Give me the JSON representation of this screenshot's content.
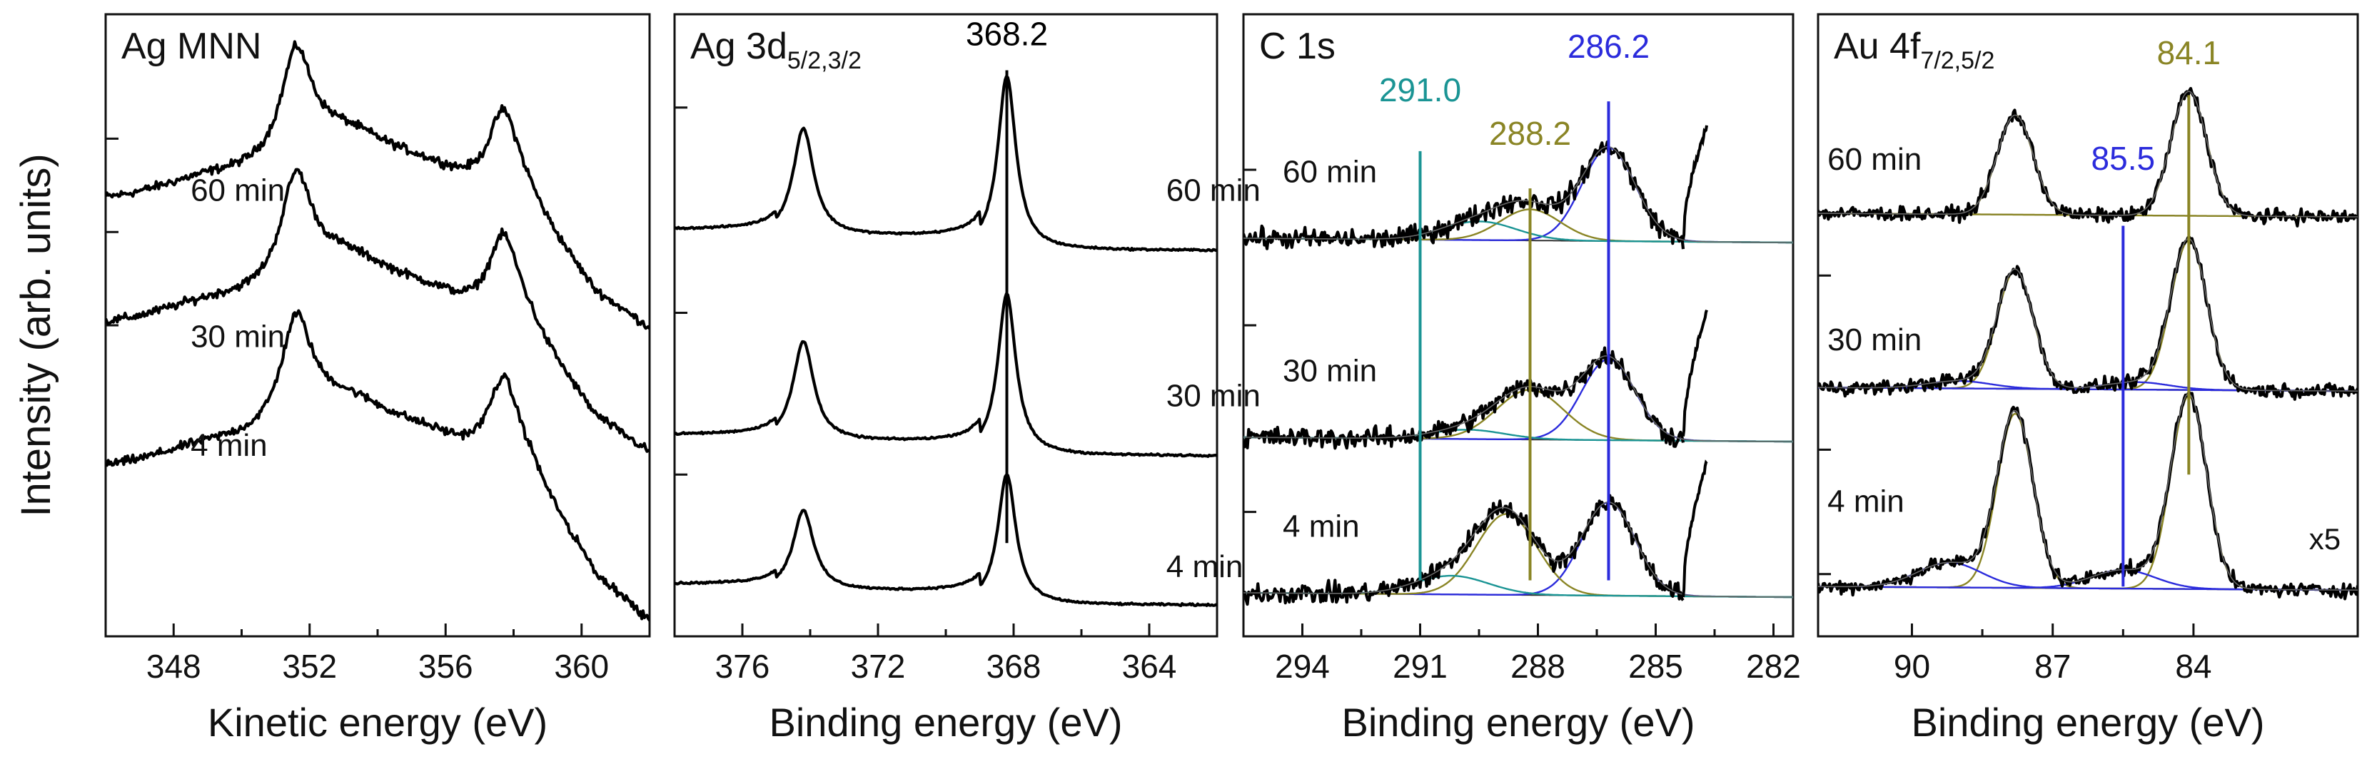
{
  "figure": {
    "ylabel": "Intensity (arb. units)"
  },
  "chart_data": [
    {
      "type": "line",
      "title": "Ag MNN",
      "title_sub": "",
      "xlabel": "Kinetic energy (eV)",
      "xlim": [
        346,
        362
      ],
      "xticks": [
        348,
        352,
        356,
        360
      ],
      "ylabel": "Intensity (arb. units)",
      "ylim": [
        0,
        100
      ],
      "yticks": [
        50,
        65,
        80
      ],
      "x_reversed": false,
      "series": [
        {
          "name": "60 min",
          "label": "60 min",
          "baseline": 62,
          "label_x": 348.5,
          "label_y": 70,
          "spectrum": {
            "kind": "auger",
            "noise": 0.7,
            "end": 10
          }
        },
        {
          "name": "30 min",
          "label": "30 min",
          "baseline": 42,
          "label_x": 348.5,
          "label_y": 46.5,
          "spectrum": {
            "kind": "auger",
            "noise": 0.7,
            "end": 10
          }
        },
        {
          "name": "4 min",
          "label": "4 min",
          "baseline": 19,
          "label_x": 348.5,
          "label_y": 29,
          "spectrum": {
            "kind": "auger",
            "noise": 0.7,
            "end": 0
          }
        }
      ]
    },
    {
      "type": "line",
      "title": "Ag 3d",
      "title_sub": "5/2,3/2",
      "xlabel": "Binding energy (eV)",
      "xlim": [
        378,
        362
      ],
      "xticks": [
        376,
        372,
        368,
        364
      ],
      "ylabel": "Intensity (arb. units)",
      "ylim": [
        0,
        100
      ],
      "yticks": [
        26,
        52,
        85
      ],
      "x_reversed": true,
      "series": [
        {
          "name": "60 min",
          "label": "60 min",
          "baseline": 62,
          "label_x": 363.5,
          "label_y": 70,
          "spectrum": {
            "kind": "ag3d",
            "noise": 0.15,
            "amp": 28
          }
        },
        {
          "name": "30 min",
          "label": "30 min",
          "baseline": 29,
          "label_x": 363.5,
          "label_y": 37,
          "spectrum": {
            "kind": "ag3d",
            "noise": 0.15,
            "amp": 26
          }
        },
        {
          "name": "4 min",
          "label": "4 min",
          "baseline": 5,
          "label_x": 363.5,
          "label_y": 9.5,
          "spectrum": {
            "kind": "ag3d",
            "noise": 0.15,
            "amp": 21
          }
        }
      ],
      "markers": [
        {
          "x": 368.2,
          "label": "368.2",
          "color": "#000000",
          "y_from": 15,
          "y_to": 91,
          "label_y": 95
        }
      ]
    },
    {
      "type": "line",
      "title": "C 1s",
      "title_sub": "",
      "xlabel": "Binding energy (eV)",
      "xlim": [
        295.5,
        281.5
      ],
      "xticks": [
        294,
        291,
        288,
        285,
        282
      ],
      "ylabel": "Intensity (arb. units)",
      "ylim": [
        0,
        100
      ],
      "yticks": [
        20,
        50,
        75
      ],
      "x_reversed": true,
      "series": [
        {
          "name": "60 min",
          "label": "60 min",
          "baseline": 64,
          "label_x": 294.5,
          "label_y": 73,
          "components": [
            {
              "center": 286.2,
              "amp": 15,
              "fwhm": 1.6,
              "color": "#2b2bdc"
            },
            {
              "center": 288.2,
              "amp": 5,
              "fwhm": 1.8,
              "color": "#8a8525"
            },
            {
              "center": 289.5,
              "amp": 3,
              "fwhm": 2.2,
              "color": "#1a9494"
            }
          ],
          "edge": {
            "start": 284.3,
            "top": 82
          }
        },
        {
          "name": "30 min",
          "label": "30 min",
          "baseline": 32,
          "label_x": 294.5,
          "label_y": 41,
          "components": [
            {
              "center": 286.2,
              "amp": 13,
              "fwhm": 1.6,
              "color": "#2b2bdc"
            },
            {
              "center": 288.2,
              "amp": 8,
              "fwhm": 2.0,
              "color": "#8a8525"
            },
            {
              "center": 289.8,
              "amp": 1.5,
              "fwhm": 2.2,
              "color": "#1a9494"
            }
          ],
          "edge": {
            "start": 284.3,
            "top": 52
          }
        },
        {
          "name": "4 min",
          "label": "4 min",
          "baseline": 7,
          "label_x": 294.5,
          "label_y": 16,
          "components": [
            {
              "center": 286.2,
              "amp": 15,
              "fwhm": 1.6,
              "color": "#2b2bdc"
            },
            {
              "center": 288.8,
              "amp": 13,
              "fwhm": 1.8,
              "color": "#8a8525"
            },
            {
              "center": 290.2,
              "amp": 3,
              "fwhm": 2.2,
              "color": "#1a9494"
            }
          ],
          "edge": {
            "start": 284.3,
            "top": 28
          }
        }
      ],
      "markers": [
        {
          "x": 291.0,
          "label": "291.0",
          "color": "#1a9494",
          "y_from": 9,
          "y_to": 78,
          "label_y": 86
        },
        {
          "x": 288.2,
          "label": "288.2",
          "color": "#8a8525",
          "y_from": 9,
          "y_to": 72,
          "label_y": 79
        },
        {
          "x": 286.2,
          "label": "286.2",
          "color": "#2b2bdc",
          "y_from": 9,
          "y_to": 86,
          "label_y": 93
        }
      ]
    },
    {
      "type": "line",
      "title": "Au 4f",
      "title_sub": "7/2,5/2",
      "xlabel": "Binding energy (eV)",
      "xlim": [
        92,
        80.5
      ],
      "xticks": [
        90,
        87,
        84
      ],
      "ylabel": "Intensity (arb. units)",
      "ylim": [
        0,
        100
      ],
      "yticks": [
        10,
        30,
        58
      ],
      "x_reversed": true,
      "series": [
        {
          "name": "60 min",
          "label": "60 min",
          "baseline": 68,
          "label_x": 91.8,
          "label_y": 75,
          "components": [
            {
              "center": 84.1,
              "amp": 20,
              "fwhm": 0.9,
              "color": "#8a8525"
            },
            {
              "center": 87.8,
              "amp": 16,
              "fwhm": 0.9,
              "color": "#8a8525"
            }
          ]
        },
        {
          "name": "30 min",
          "label": "30 min",
          "baseline": 40,
          "label_x": 91.8,
          "label_y": 46,
          "components": [
            {
              "center": 84.1,
              "amp": 24,
              "fwhm": 0.9,
              "color": "#8a8525"
            },
            {
              "center": 87.8,
              "amp": 19,
              "fwhm": 0.9,
              "color": "#8a8525"
            },
            {
              "center": 85.2,
              "amp": 1.2,
              "fwhm": 1.6,
              "color": "#2b2bdc"
            },
            {
              "center": 89.0,
              "amp": 1.2,
              "fwhm": 1.6,
              "color": "#2b2bdc"
            }
          ]
        },
        {
          "name": "4 min",
          "label": "4 min",
          "baseline": 8,
          "label_x": 91.8,
          "label_y": 20,
          "components": [
            {
              "center": 84.1,
              "amp": 31,
              "fwhm": 0.9,
              "color": "#8a8525"
            },
            {
              "center": 87.8,
              "amp": 28,
              "fwhm": 0.9,
              "color": "#8a8525"
            },
            {
              "center": 85.5,
              "amp": 3,
              "fwhm": 1.6,
              "color": "#2b2bdc"
            },
            {
              "center": 89.2,
              "amp": 4,
              "fwhm": 1.6,
              "color": "#2b2bdc"
            }
          ]
        }
      ],
      "markers": [
        {
          "x": 85.5,
          "label": "85.5",
          "color": "#2b2bdc",
          "y_from": 8,
          "y_to": 66,
          "label_y": 75
        },
        {
          "x": 84.1,
          "label": "84.1",
          "color": "#8a8525",
          "y_from": 26,
          "y_to": 87,
          "label_y": 92
        }
      ],
      "annotations": [
        {
          "text": "x5",
          "x": 81.2,
          "y": 14
        }
      ]
    }
  ]
}
